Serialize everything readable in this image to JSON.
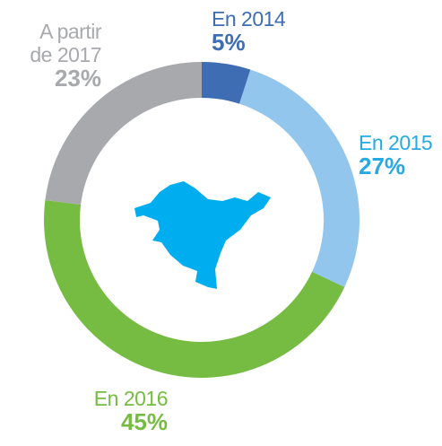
{
  "chart_data": {
    "type": "donut",
    "categories": [
      "En 2014",
      "En 2015",
      "En 2016",
      "A partir\nde 2017"
    ],
    "values": [
      5,
      27,
      45,
      23
    ],
    "value_labels": [
      "5%",
      "27%",
      "45%",
      "23%"
    ],
    "colors": [
      "#3f6db3",
      "#93c6ec",
      "#76bc43",
      "#a7a9ac"
    ],
    "label_colors": [
      "#3f6db3",
      "#29a9e1",
      "#76bc43",
      "#a7a9ac"
    ]
  }
}
